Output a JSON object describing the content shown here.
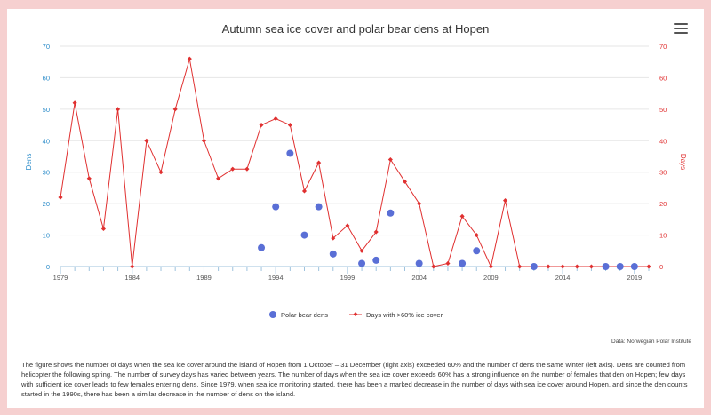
{
  "chart_data": {
    "type": "line",
    "title": "Autumn sea ice cover and polar bear dens at Hopen",
    "ylabel_left": "Dens",
    "ylabel_right": "Days",
    "ylim_left": [
      0,
      70
    ],
    "ylim_right": [
      0,
      70
    ],
    "yticks": [
      0,
      10,
      20,
      30,
      40,
      50,
      60,
      70
    ],
    "xlim": [
      1979,
      2020
    ],
    "xticks": [
      1979,
      1984,
      1989,
      1994,
      1999,
      2004,
      2009,
      2014,
      2019
    ],
    "grid": true,
    "legend_placement": "bottom",
    "series": [
      {
        "name": "Polar bear dens",
        "kind": "scatter",
        "axis": "left",
        "color": "#5a6fd6",
        "x": [
          1993,
          1994,
          1995,
          1996,
          1997,
          1998,
          2000,
          2001,
          2002,
          2004,
          2007,
          2008,
          2012,
          2017,
          2018,
          2019
        ],
        "values": [
          6,
          19,
          36,
          10,
          19,
          4,
          1,
          2,
          17,
          1,
          1,
          5,
          0,
          0,
          0,
          0
        ]
      },
      {
        "name": "Days with >60% ice cover",
        "kind": "line",
        "axis": "right",
        "color": "#e03030",
        "x": [
          1979,
          1980,
          1981,
          1982,
          1983,
          1984,
          1985,
          1986,
          1987,
          1988,
          1989,
          1990,
          1991,
          1992,
          1993,
          1994,
          1995,
          1996,
          1997,
          1998,
          1999,
          2000,
          2001,
          2002,
          2003,
          2004,
          2005,
          2006,
          2007,
          2008,
          2009,
          2010,
          2011,
          2012,
          2013,
          2014,
          2015,
          2016,
          2017,
          2018,
          2019,
          2020
        ],
        "values": [
          22,
          52,
          28,
          12,
          50,
          0,
          40,
          30,
          50,
          66,
          40,
          28,
          31,
          31,
          45,
          47,
          45,
          24,
          33,
          9,
          13,
          5,
          11,
          34,
          27,
          20,
          0,
          1,
          16,
          10,
          0,
          21,
          0,
          0,
          0,
          0,
          0,
          0,
          0,
          0,
          0,
          0
        ]
      }
    ]
  },
  "credit": "Data: Norwegian Polar Institute",
  "caption": "The figure shows the number of days when the sea ice cover around the island of Hopen from 1 October – 31 December (right axis) exceeded 60% and the number of dens the same winter (left axis). Dens are counted from helicopter the following spring. The number of survey days has varied between years. The number of days when the sea ice cover exceeds 60% has a strong influence on the number of females that den on Hopen; few days with sufficient ice cover leads to few females entering dens. Since 1979, when sea ice monitoring started, there has been a marked decrease in the number of days with sea ice cover around Hopen, and since the den counts started in the 1990s, there has been a similar decrease in the number of dens on the island.",
  "menu_icon": "hamburger-menu-icon"
}
